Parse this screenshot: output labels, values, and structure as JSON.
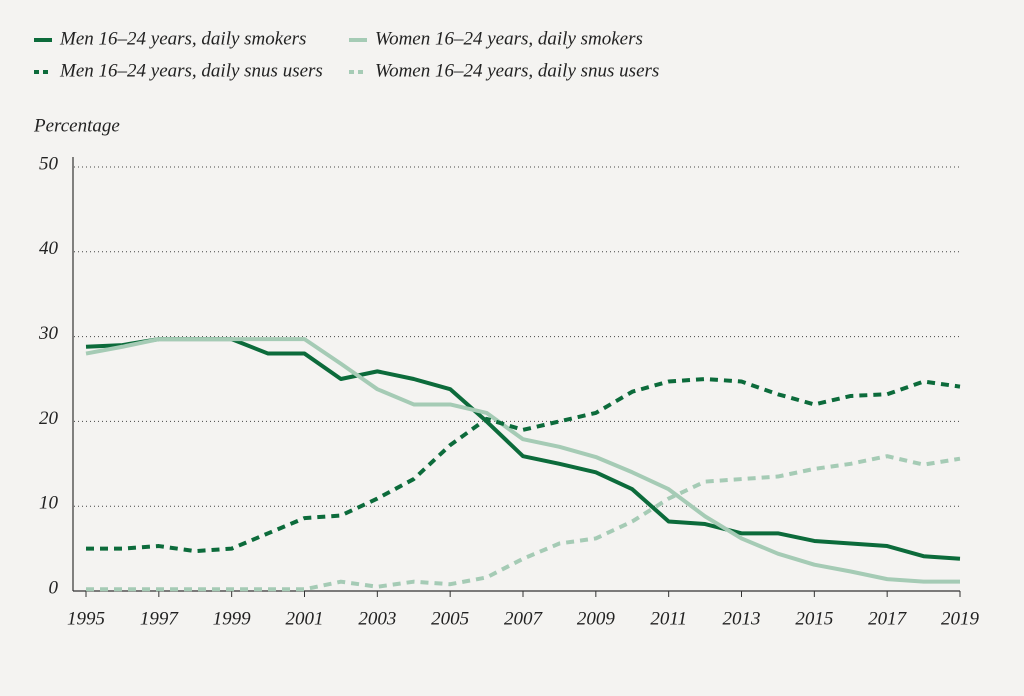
{
  "chart_data": {
    "type": "line",
    "y_label": "Percentage",
    "x": [
      1995,
      1996,
      1997,
      1998,
      1999,
      2000,
      2001,
      2002,
      2003,
      2004,
      2005,
      2006,
      2007,
      2008,
      2009,
      2010,
      2011,
      2012,
      2013,
      2014,
      2015,
      2016,
      2017,
      2018,
      2019
    ],
    "series": [
      {
        "name": "Men 16–24 years, daily smokers",
        "color": "#0c6b3b",
        "style": "solid",
        "values": [
          28.8,
          29,
          29.7,
          29.7,
          29.7,
          28,
          28,
          25,
          25.9,
          25,
          23.8,
          20,
          15.9,
          15,
          14,
          12,
          8.2,
          7.9,
          6.8,
          6.8,
          5.9,
          5.6,
          5.3,
          4.1,
          3.8
        ]
      },
      {
        "name": "Women 16–24 years, daily smokers",
        "color": "#a5cbb5",
        "style": "solid",
        "values": [
          28,
          28.8,
          29.7,
          29.7,
          29.7,
          29.7,
          29.7,
          26.8,
          23.8,
          22,
          22,
          21,
          17.9,
          17,
          15.8,
          14,
          12,
          8.8,
          6.2,
          4.4,
          3.1,
          2.3,
          1.4,
          1.1,
          1.1
        ]
      },
      {
        "name": "Men 16–24 years, daily snus users",
        "color": "#0c6b3b",
        "style": "dashed",
        "values": [
          5,
          5,
          5.3,
          4.7,
          5,
          6.8,
          8.6,
          8.9,
          10.9,
          13.2,
          17.2,
          20.3,
          19,
          20,
          21,
          23.5,
          24.7,
          25,
          24.7,
          23.2,
          22,
          23,
          23.2,
          24.7,
          24.1
        ]
      },
      {
        "name": "Women 16–24 years, daily snus users",
        "color": "#a5cbb5",
        "style": "dashed",
        "values": [
          0.2,
          0.2,
          0.2,
          0.2,
          0.2,
          0.2,
          0.2,
          1.1,
          0.5,
          1.1,
          0.8,
          1.6,
          3.8,
          5.6,
          6.2,
          8.2,
          10.9,
          12.9,
          13.2,
          13.5,
          14.4,
          15,
          15.9,
          14.9,
          15.6
        ]
      }
    ],
    "xlim": [
      1995,
      2019
    ],
    "xticks": [
      1995,
      1997,
      1999,
      2001,
      2003,
      2005,
      2007,
      2009,
      2011,
      2013,
      2015,
      2017,
      2019
    ],
    "ylim": [
      0,
      50
    ],
    "yticks": [
      0,
      10,
      20,
      30,
      40,
      50
    ],
    "grid": true
  }
}
